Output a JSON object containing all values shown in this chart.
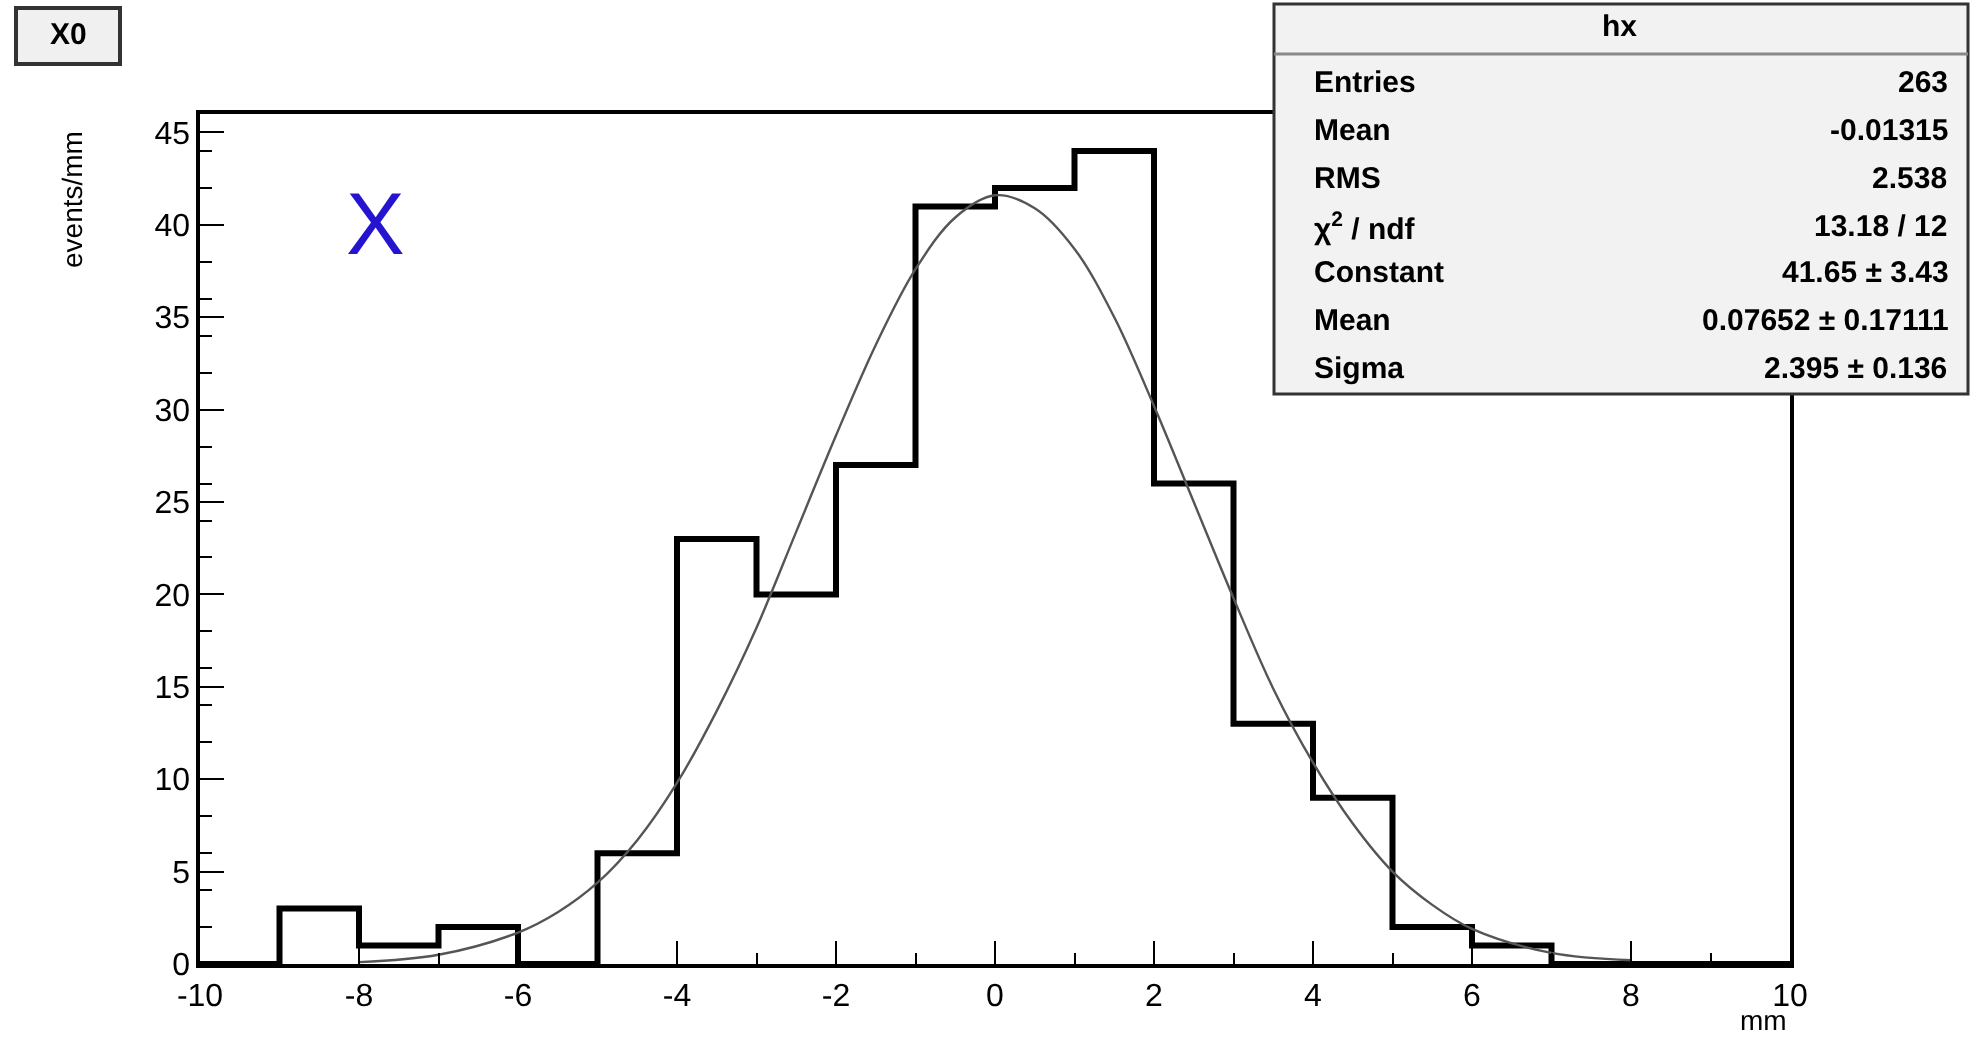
{
  "chart_data": {
    "type": "histogram",
    "xlabel": "mm",
    "ylabel": "events/mm",
    "bins": [
      -10,
      -9,
      -8,
      -7,
      -6,
      -5,
      -4,
      -3,
      -2,
      -1,
      0,
      1,
      2,
      3,
      4,
      5,
      6,
      7,
      8,
      9,
      10
    ],
    "values": [
      0,
      3,
      1,
      2,
      0,
      6,
      23,
      20,
      27,
      41,
      42,
      44,
      26,
      13,
      9,
      2,
      1,
      0,
      0,
      0
    ],
    "color": "#000000",
    "series": [
      {
        "type": "line",
        "color": "#555555",
        "x": [
          -8,
          -7,
          -6,
          -5.5,
          -5,
          -4.5,
          -4,
          -3.5,
          -3,
          -2.5,
          -2,
          -1.5,
          -1,
          -0.5,
          0,
          0.5,
          1,
          1.5,
          2,
          2.5,
          3,
          3.5,
          4,
          4.5,
          5,
          5.5,
          6,
          7,
          8
        ],
        "values": [
          0.1,
          0.5,
          1.7,
          2.8,
          4.4,
          6.7,
          9.8,
          13.7,
          18.2,
          23.4,
          28.6,
          33.5,
          37.6,
          40.4,
          41.6,
          40.9,
          38.7,
          35.0,
          30.2,
          25.0,
          19.8,
          14.9,
          10.9,
          7.6,
          5.0,
          3.2,
          1.9,
          0.6,
          0.2
        ]
      }
    ],
    "xlim": [
      -10,
      10
    ],
    "xticks": [
      -10,
      -8,
      -6,
      -4,
      -2,
      0,
      2,
      4,
      6,
      8,
      10
    ],
    "ylim": [
      0,
      46
    ],
    "yticks": [
      0,
      5,
      10,
      15,
      20,
      25,
      30,
      35,
      40,
      45
    ],
    "annotations": [
      "X0",
      "X",
      "hx",
      "Entries",
      "263",
      "Mean",
      "-0.01315",
      "RMS",
      "2.538",
      "χ$^{2}$ / ndf",
      "13.18 / 12",
      "Constant",
      "41.65 ± 3.43",
      "Mean",
      "0.07652 ± 0.17111",
      "Sigma",
      "2.395 ± 0.136"
    ]
  }
}
